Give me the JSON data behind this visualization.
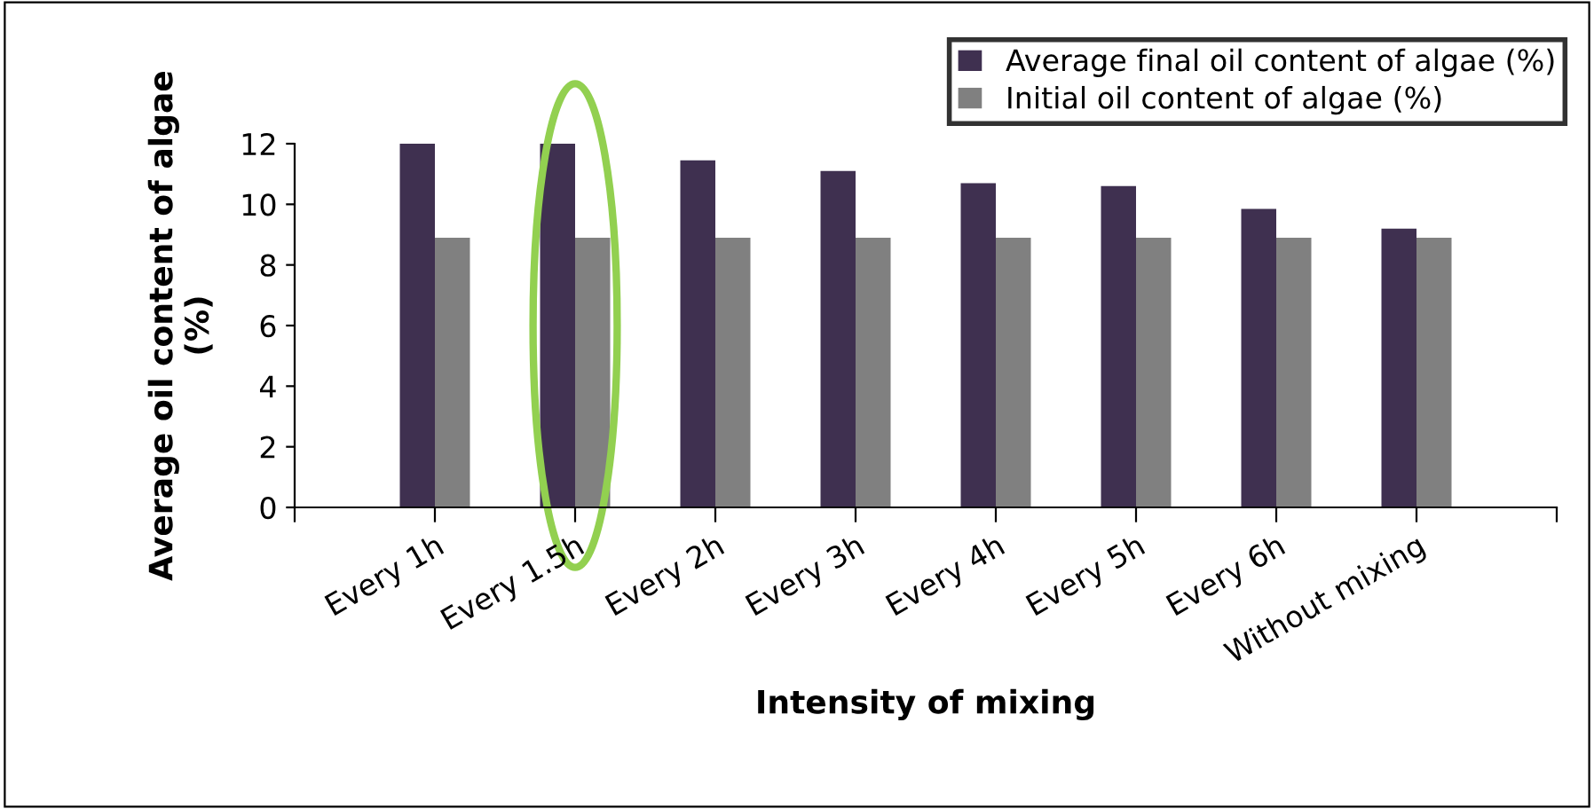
{
  "chart_data": {
    "type": "bar",
    "xlabel": "Intensity of mixing",
    "ylabel": "Average oil content of algae\n(%)",
    "categories": [
      null,
      "Every 1h",
      "Every 1.5h",
      "Every 2h",
      "Every 3h",
      "Every 4h",
      "Every 5h",
      "Every 6h",
      "Without mixing",
      null
    ],
    "series": [
      {
        "name": "Average final oil content of algae (%)",
        "color": "#3f3050",
        "values": [
          null,
          12.0,
          12.0,
          11.45,
          11.1,
          10.7,
          10.6,
          9.85,
          9.2,
          null
        ]
      },
      {
        "name": "Initial oil content of algae (%)",
        "color": "#808080",
        "values": [
          null,
          8.9,
          8.9,
          8.9,
          8.9,
          8.9,
          8.9,
          8.9,
          8.9,
          null
        ]
      }
    ],
    "ylim": [
      0,
      12
    ],
    "yticks": [
      0,
      2,
      4,
      6,
      8,
      10,
      12
    ],
    "grid": false,
    "legend": "top right"
  }
}
